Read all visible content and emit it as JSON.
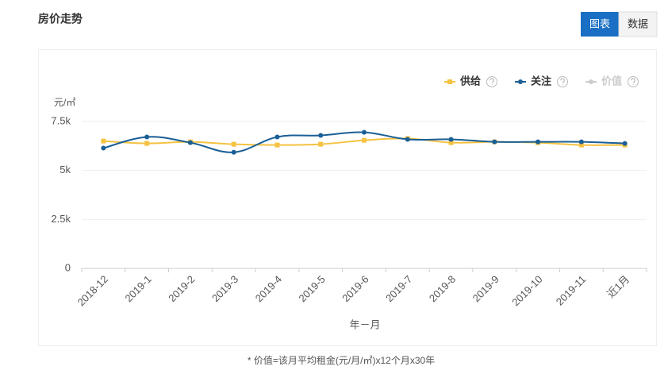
{
  "header": {
    "title": "房价走势",
    "tabs": [
      "图表",
      "数据"
    ]
  },
  "footnote": "* 价值=该月平均租金(元/月/㎡)x12个月x30年",
  "chart_data": {
    "type": "line",
    "y_unit": "元/㎡",
    "xlabel": "年－月",
    "categories": [
      "2018-12",
      "2019-1",
      "2019-2",
      "2019-3",
      "2019-4",
      "2019-5",
      "2019-6",
      "2019-7",
      "2019-8",
      "2019-9",
      "2019-10",
      "2019-11",
      "近1月"
    ],
    "series": [
      {
        "name": "供给",
        "color": "#f5c242",
        "marker": "square",
        "values": [
          6500,
          6380,
          6460,
          6340,
          6300,
          6340,
          6540,
          6630,
          6420,
          6460,
          6420,
          6300,
          6300
        ]
      },
      {
        "name": "关注",
        "color": "#1a5f96",
        "marker": "circle",
        "values": [
          6140,
          6710,
          6420,
          5930,
          6710,
          6790,
          6950,
          6590,
          6590,
          6460,
          6460,
          6460,
          6380
        ]
      },
      {
        "name": "价值",
        "color": "#cccccc",
        "marker": "circle",
        "values": [
          null,
          null,
          null,
          null,
          null,
          null,
          null,
          null,
          null,
          null,
          null,
          null,
          null
        ]
      }
    ],
    "ylim": [
      0,
      7500
    ],
    "yticks": [
      0,
      {
        "value": 2500,
        "label": "2.5k"
      },
      {
        "value": 5000,
        "label": "5k"
      },
      {
        "value": 7500,
        "label": "7.5k"
      }
    ],
    "grid": true,
    "legend": "top-right"
  }
}
